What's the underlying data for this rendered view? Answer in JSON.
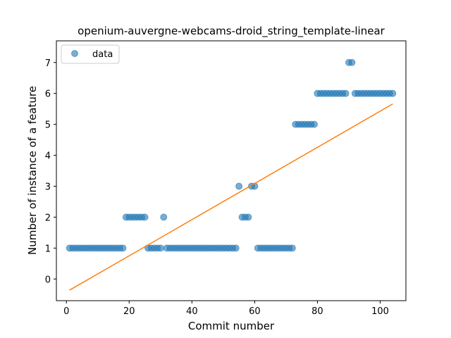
{
  "chart_data": {
    "type": "scatter",
    "title": "openium-auvergne-webcams-droid_string_template-linear",
    "xlabel": "Commit number",
    "ylabel": "Number of instance of a feature",
    "xlim": [
      -3.2,
      108.2
    ],
    "ylim": [
      -0.7,
      7.7
    ],
    "xticks": [
      0,
      20,
      40,
      60,
      80,
      100
    ],
    "yticks": [
      0,
      1,
      2,
      3,
      4,
      5,
      6,
      7
    ],
    "grid": false,
    "legend_position": "upper left",
    "series": [
      {
        "name": "data",
        "kind": "points",
        "color": "#1f77b4",
        "x": [
          1,
          2,
          3,
          4,
          5,
          6,
          7,
          8,
          9,
          10,
          11,
          12,
          13,
          14,
          15,
          16,
          17,
          18,
          19,
          20,
          21,
          22,
          23,
          24,
          25,
          26,
          27,
          28,
          29,
          30,
          31,
          32,
          33,
          34,
          35,
          36,
          37,
          38,
          39,
          40,
          41,
          42,
          43,
          44,
          45,
          46,
          47,
          48,
          49,
          50,
          51,
          52,
          53,
          54,
          55,
          56,
          57,
          58,
          59,
          60,
          61,
          62,
          63,
          64,
          65,
          66,
          67,
          68,
          69,
          70,
          71,
          72,
          73,
          74,
          75,
          76,
          77,
          78,
          79,
          80,
          81,
          82,
          83,
          84,
          85,
          86,
          87,
          88,
          89,
          90,
          91,
          92,
          93,
          94,
          95,
          96,
          97,
          98,
          99,
          100,
          101,
          102,
          103,
          104
        ],
        "y": [
          1,
          1,
          1,
          1,
          1,
          1,
          1,
          1,
          1,
          1,
          1,
          1,
          1,
          1,
          1,
          1,
          1,
          1,
          2,
          2,
          2,
          2,
          2,
          2,
          2,
          1,
          1,
          1,
          1,
          1,
          2,
          1,
          1,
          1,
          1,
          1,
          1,
          1,
          1,
          1,
          1,
          1,
          1,
          1,
          1,
          1,
          1,
          1,
          1,
          1,
          1,
          1,
          1,
          1,
          3,
          2,
          2,
          2,
          3,
          3,
          1,
          1,
          1,
          1,
          1,
          1,
          1,
          1,
          1,
          1,
          1,
          1,
          5,
          5,
          5,
          5,
          5,
          5,
          5,
          6,
          6,
          6,
          6,
          6,
          6,
          6,
          6,
          6,
          6,
          7,
          7,
          6,
          6,
          6,
          6,
          6,
          6,
          6,
          6,
          6,
          6,
          6,
          6,
          6
        ]
      },
      {
        "name": "linear fit",
        "kind": "line",
        "color": "#ff7f0e",
        "x": [
          1,
          104
        ],
        "y": [
          -0.36,
          5.66
        ]
      }
    ]
  }
}
